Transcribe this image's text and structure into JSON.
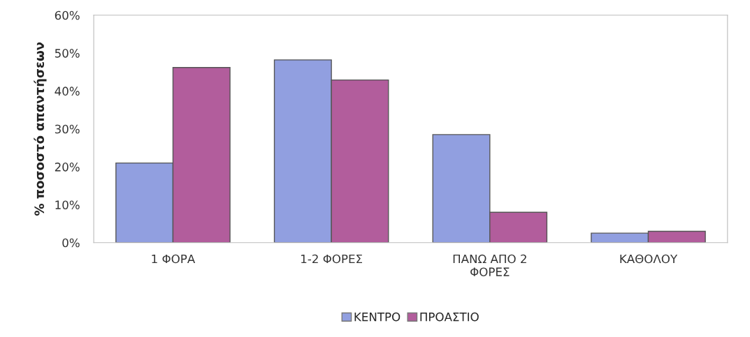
{
  "chart_data": {
    "type": "bar",
    "ylabel": "% ποσοστό απαντήσεων",
    "categories": [
      "1 ΦΟΡΑ",
      "1-2 ΦΟΡΕΣ",
      "ΠΑΝΩ ΑΠΟ 2\nΦΟΡΕΣ",
      "ΚΑΘΟΛΟΥ"
    ],
    "series": [
      {
        "name": "ΚΕΝΤΡΟ",
        "color": "#919fe0",
        "values": [
          21,
          48.2,
          28.5,
          2.5
        ]
      },
      {
        "name": "ΠΡΟΑΣΤΙΟ",
        "color": "#b25d9c",
        "values": [
          46.2,
          42.9,
          8,
          3
        ]
      }
    ],
    "ylim": [
      0,
      60
    ],
    "yticks": [
      {
        "value": 0,
        "label": "0%"
      },
      {
        "value": 10,
        "label": "10%"
      },
      {
        "value": 20,
        "label": "20%"
      },
      {
        "value": 30,
        "label": "30%"
      },
      {
        "value": 40,
        "label": "40%"
      },
      {
        "value": 50,
        "label": "50%"
      },
      {
        "value": 60,
        "label": "60%"
      }
    ],
    "grid": false,
    "legend": "bottom"
  }
}
